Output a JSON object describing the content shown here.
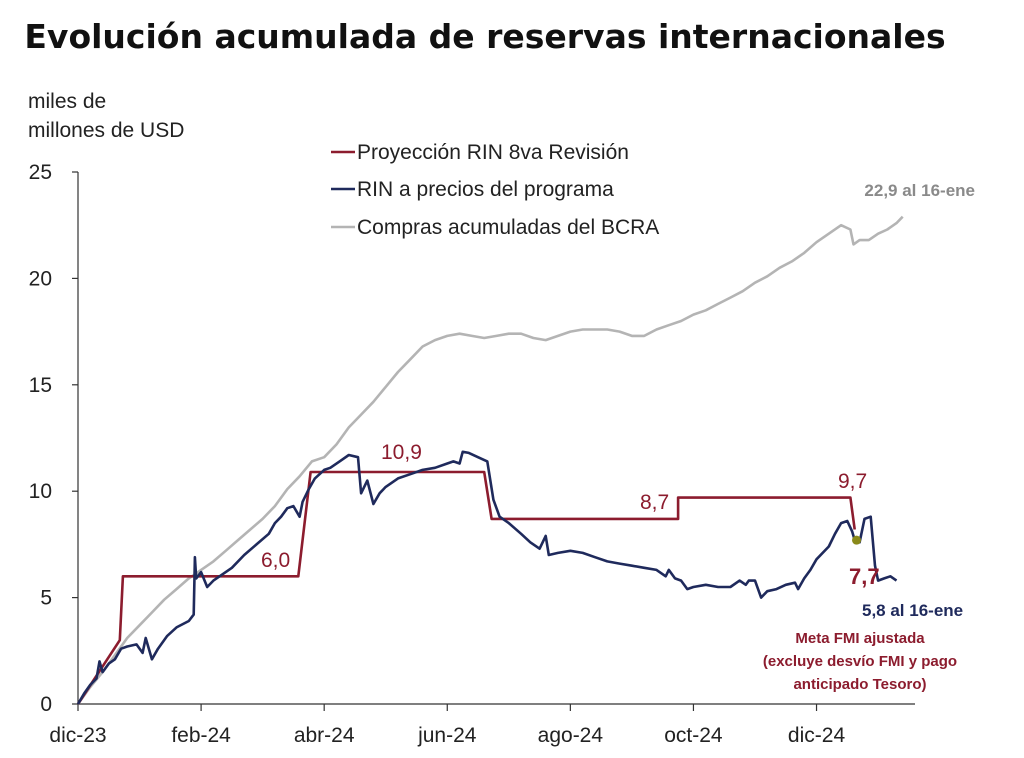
{
  "chart_data": {
    "type": "line",
    "title": "Evolución acumulada de reservas internacionales",
    "ylabel_lines": [
      "miles de",
      "millones de USD"
    ],
    "ylim": [
      0,
      25
    ],
    "yticks": [
      "0",
      "5",
      "10",
      "15",
      "20",
      "25"
    ],
    "xlim": [
      0,
      13.6
    ],
    "xticks": [
      {
        "x": 0,
        "label": "dic-23"
      },
      {
        "x": 2,
        "label": "feb-24"
      },
      {
        "x": 4,
        "label": "abr-24"
      },
      {
        "x": 6,
        "label": "jun-24"
      },
      {
        "x": 8,
        "label": "ago-24"
      },
      {
        "x": 10,
        "label": "oct-24"
      },
      {
        "x": 12,
        "label": "dic-24"
      }
    ],
    "series": [
      {
        "name": "Proyección RIN 8va Revisión",
        "color": "#8c1c2e",
        "points": [
          [
            0,
            0
          ],
          [
            0.68,
            3
          ],
          [
            0.73,
            6
          ],
          [
            3.58,
            6
          ],
          [
            3.78,
            10.9
          ],
          [
            6.6,
            10.9
          ],
          [
            6.72,
            8.7
          ],
          [
            9.75,
            8.7
          ],
          [
            9.75,
            9.7
          ],
          [
            12.55,
            9.7
          ],
          [
            12.62,
            8.2
          ]
        ]
      },
      {
        "name": "RIN a precios del programa",
        "color": "#1f2a5c",
        "points": [
          [
            0,
            0
          ],
          [
            0.1,
            0.5
          ],
          [
            0.2,
            0.9
          ],
          [
            0.3,
            1.2
          ],
          [
            0.35,
            2.0
          ],
          [
            0.4,
            1.5
          ],
          [
            0.5,
            1.9
          ],
          [
            0.6,
            2.1
          ],
          [
            0.7,
            2.6
          ],
          [
            0.8,
            2.7
          ],
          [
            0.95,
            2.8
          ],
          [
            1.05,
            2.4
          ],
          [
            1.1,
            3.1
          ],
          [
            1.2,
            2.1
          ],
          [
            1.3,
            2.6
          ],
          [
            1.45,
            3.2
          ],
          [
            1.6,
            3.6
          ],
          [
            1.8,
            3.9
          ],
          [
            1.88,
            4.2
          ],
          [
            1.9,
            6.9
          ],
          [
            1.92,
            5.9
          ],
          [
            2.0,
            6.2
          ],
          [
            2.1,
            5.5
          ],
          [
            2.2,
            5.8
          ],
          [
            2.3,
            6.0
          ],
          [
            2.5,
            6.4
          ],
          [
            2.7,
            7.0
          ],
          [
            2.9,
            7.5
          ],
          [
            3.1,
            8.0
          ],
          [
            3.2,
            8.5
          ],
          [
            3.3,
            8.8
          ],
          [
            3.4,
            9.2
          ],
          [
            3.5,
            9.3
          ],
          [
            3.6,
            8.8
          ],
          [
            3.65,
            9.5
          ],
          [
            3.75,
            10.1
          ],
          [
            3.85,
            10.6
          ],
          [
            4.0,
            11.0
          ],
          [
            4.1,
            11.1
          ],
          [
            4.25,
            11.4
          ],
          [
            4.4,
            11.7
          ],
          [
            4.55,
            11.6
          ],
          [
            4.6,
            9.9
          ],
          [
            4.7,
            10.5
          ],
          [
            4.8,
            9.4
          ],
          [
            4.9,
            9.9
          ],
          [
            5.0,
            10.2
          ],
          [
            5.2,
            10.6
          ],
          [
            5.4,
            10.8
          ],
          [
            5.6,
            11.0
          ],
          [
            5.8,
            11.1
          ],
          [
            6.0,
            11.3
          ],
          [
            6.1,
            11.4
          ],
          [
            6.2,
            11.3
          ],
          [
            6.25,
            11.85
          ],
          [
            6.35,
            11.8
          ],
          [
            6.5,
            11.6
          ],
          [
            6.65,
            11.4
          ],
          [
            6.75,
            9.6
          ],
          [
            6.85,
            8.8
          ],
          [
            7.0,
            8.5
          ],
          [
            7.2,
            8.0
          ],
          [
            7.35,
            7.6
          ],
          [
            7.5,
            7.3
          ],
          [
            7.6,
            7.9
          ],
          [
            7.65,
            7.0
          ],
          [
            7.8,
            7.1
          ],
          [
            8.0,
            7.2
          ],
          [
            8.2,
            7.1
          ],
          [
            8.4,
            6.9
          ],
          [
            8.6,
            6.7
          ],
          [
            8.8,
            6.6
          ],
          [
            9.0,
            6.5
          ],
          [
            9.2,
            6.4
          ],
          [
            9.4,
            6.3
          ],
          [
            9.55,
            6.0
          ],
          [
            9.6,
            6.3
          ],
          [
            9.7,
            5.9
          ],
          [
            9.8,
            5.8
          ],
          [
            9.9,
            5.4
          ],
          [
            10.0,
            5.5
          ],
          [
            10.2,
            5.6
          ],
          [
            10.4,
            5.5
          ],
          [
            10.6,
            5.5
          ],
          [
            10.75,
            5.8
          ],
          [
            10.85,
            5.6
          ],
          [
            10.9,
            5.8
          ],
          [
            11.0,
            5.8
          ],
          [
            11.1,
            5.0
          ],
          [
            11.2,
            5.3
          ],
          [
            11.35,
            5.4
          ],
          [
            11.5,
            5.6
          ],
          [
            11.65,
            5.7
          ],
          [
            11.7,
            5.4
          ],
          [
            11.8,
            5.9
          ],
          [
            11.9,
            6.3
          ],
          [
            12.0,
            6.8
          ],
          [
            12.2,
            7.4
          ],
          [
            12.3,
            8.0
          ],
          [
            12.4,
            8.5
          ],
          [
            12.5,
            8.6
          ],
          [
            12.58,
            8.1
          ],
          [
            12.62,
            7.7
          ],
          [
            12.7,
            7.6
          ],
          [
            12.78,
            8.7
          ],
          [
            12.88,
            8.8
          ],
          [
            12.95,
            6.5
          ],
          [
            13.0,
            5.8
          ],
          [
            13.1,
            5.9
          ],
          [
            13.2,
            6.0
          ],
          [
            13.3,
            5.8
          ]
        ]
      },
      {
        "name": "Compras acumuladas del BCRA",
        "color": "#b4b4b4",
        "points": [
          [
            0,
            0
          ],
          [
            0.2,
            0.8
          ],
          [
            0.4,
            1.5
          ],
          [
            0.6,
            2.3
          ],
          [
            0.8,
            3.1
          ],
          [
            1.0,
            3.7
          ],
          [
            1.2,
            4.3
          ],
          [
            1.4,
            4.9
          ],
          [
            1.6,
            5.4
          ],
          [
            1.8,
            5.9
          ],
          [
            2.0,
            6.3
          ],
          [
            2.2,
            6.7
          ],
          [
            2.4,
            7.2
          ],
          [
            2.6,
            7.7
          ],
          [
            2.8,
            8.2
          ],
          [
            3.0,
            8.7
          ],
          [
            3.2,
            9.3
          ],
          [
            3.4,
            10.1
          ],
          [
            3.6,
            10.7
          ],
          [
            3.8,
            11.4
          ],
          [
            4.0,
            11.6
          ],
          [
            4.2,
            12.2
          ],
          [
            4.4,
            13.0
          ],
          [
            4.6,
            13.6
          ],
          [
            4.8,
            14.2
          ],
          [
            5.0,
            14.9
          ],
          [
            5.2,
            15.6
          ],
          [
            5.4,
            16.2
          ],
          [
            5.6,
            16.8
          ],
          [
            5.8,
            17.1
          ],
          [
            6.0,
            17.3
          ],
          [
            6.2,
            17.4
          ],
          [
            6.4,
            17.3
          ],
          [
            6.6,
            17.2
          ],
          [
            6.8,
            17.3
          ],
          [
            7.0,
            17.4
          ],
          [
            7.2,
            17.4
          ],
          [
            7.4,
            17.2
          ],
          [
            7.6,
            17.1
          ],
          [
            7.8,
            17.3
          ],
          [
            8.0,
            17.5
          ],
          [
            8.2,
            17.6
          ],
          [
            8.4,
            17.6
          ],
          [
            8.6,
            17.6
          ],
          [
            8.8,
            17.5
          ],
          [
            9.0,
            17.3
          ],
          [
            9.2,
            17.3
          ],
          [
            9.4,
            17.6
          ],
          [
            9.6,
            17.8
          ],
          [
            9.8,
            18.0
          ],
          [
            10.0,
            18.3
          ],
          [
            10.2,
            18.5
          ],
          [
            10.4,
            18.8
          ],
          [
            10.6,
            19.1
          ],
          [
            10.8,
            19.4
          ],
          [
            11.0,
            19.8
          ],
          [
            11.2,
            20.1
          ],
          [
            11.4,
            20.5
          ],
          [
            11.6,
            20.8
          ],
          [
            11.8,
            21.2
          ],
          [
            12.0,
            21.7
          ],
          [
            12.2,
            22.1
          ],
          [
            12.4,
            22.5
          ],
          [
            12.55,
            22.3
          ],
          [
            12.6,
            21.6
          ],
          [
            12.7,
            21.8
          ],
          [
            12.85,
            21.8
          ],
          [
            13.0,
            22.1
          ],
          [
            13.15,
            22.3
          ],
          [
            13.3,
            22.6
          ],
          [
            13.4,
            22.9
          ]
        ]
      }
    ],
    "annotations": {
      "proj_6_0": "6,0",
      "proj_10_9": "10,9",
      "proj_8_7": "8,7",
      "proj_9_7": "9,7",
      "meta_value": "7,7",
      "rin_end": "5,8 al 16-ene",
      "compras_end": "22,9 al 16-ene",
      "meta_note_lines": [
        "Meta FMI ajustada",
        "(excluye desvío FMI y pago",
        "anticipado Tesoro)"
      ]
    },
    "meta_point": {
      "x": 12.65,
      "y": 7.7,
      "color": "#8a8a1a"
    }
  }
}
